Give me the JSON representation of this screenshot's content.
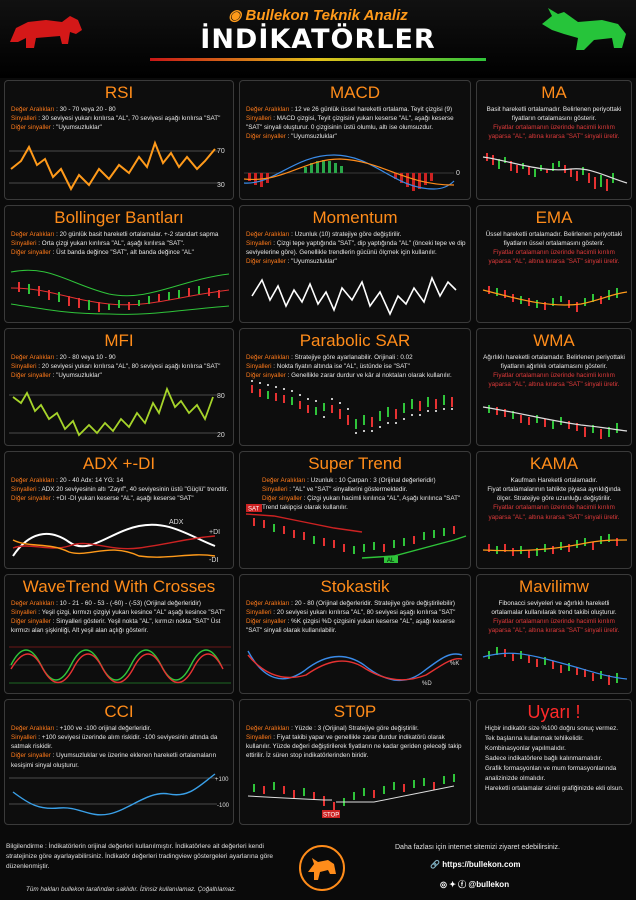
{
  "header": {
    "brand": "Bullekon Teknik Analiz",
    "title": "İNDİKATÖRLER"
  },
  "cards": {
    "rsi": {
      "title": "RSI",
      "l1k": "Değer Aralıkları",
      "l1": " : 30 - 70 veya 20 - 80",
      "l2k": "Sinyalleri",
      "l2": " : 30 seviyesi yukarı kırılırsa \"AL\", 70 seviyesi aşağı kırılırsa \"SAT\"",
      "l3k": "Diğer sinyaller",
      "l3": " : \"Uyumsuzluklar\"",
      "upper": "70",
      "lower": "30"
    },
    "macd": {
      "title": "MACD",
      "l1k": "Değer Aralıkları",
      "l1": " : 12 ve 26 günlük üssel hareketli ortalama. Teyit çizgisi (9)",
      "l2k": "Sinyalleri",
      "l2": " : MACD çizgisi, Teyit çizgisini yukarı keserse \"AL\", aşağı keserse \"SAT\" sinyali oluşturur. 0 çizgisinin üstü olumlu, altı ise olumsuzdur.",
      "l3k": "Diğer sinyaller",
      "l3": " : \"Uyumsuzluklar\"",
      "zero": "0"
    },
    "ma": {
      "title": "MA",
      "t1": "Basit hareketli ortalamadır. Belirlenen periyottaki fiyatların ortalamasını gösterir.",
      "t2": "Fiyatlar ortalamanın üzerinde hacimli kırılım yaparsa \"AL\", altına kırarsa \"SAT\" sinyali üretir."
    },
    "bollinger": {
      "title": "Bollinger Bantları",
      "l1k": "Değer Aralıkları",
      "l1": " : 20 günlük basit hareketli ortalamalar. +-2 standart sapma",
      "l2k": "Sinyalleri",
      "l2": " : Orta çizgi yukarı kırılırsa \"AL\", aşağı kırılırsa \"SAT\".",
      "l3k": "Diğer sinyaller",
      "l3": " : Üst banda değince \"SAT\", alt banda değince \"AL\""
    },
    "momentum": {
      "title": "Momentum",
      "l1k": "Değer Aralıkları",
      "l1": " : Uzunluk (10) stratejiye göre değiştirilir.",
      "l2k": "Sinyalleri",
      "l2": " : Çizgi tepe yaptığında \"SAT\", dip yaptığında \"AL\" (önceki tepe ve dip seviyelerine göre). Genellikle trendlerin gücünü ölçmek için kullanılır.",
      "l3k": "Diğer sinyaller",
      "l3": " : \"Uyumsuzluklar\""
    },
    "ema": {
      "title": "EMA",
      "t1": "Üssel hareketli ortalamadır. Belirlenen periyottaki fiyatların üssel ortalamasını gösterir.",
      "t2": "Fiyatlar ortalamanın üzerinde hacimli kırılım yaparsa \"AL\", altına kırarsa \"SAT\" sinyali üretir."
    },
    "mfi": {
      "title": "MFI",
      "l1k": "Değer Aralıkları",
      "l1": " : 20 - 80 veya 10 - 90",
      "l2k": "Sinyalleri",
      "l2": " : 20 seviyesi yukarı kırılırsa \"AL\", 80 seviyesi aşağı kırılırsa \"SAT\"",
      "l3k": "Diğer sinyaller",
      "l3": " : \"Uyumsuzluklar\"",
      "upper": "80",
      "lower": "20"
    },
    "psar": {
      "title": "Parabolic SAR",
      "l1k": "Değer Aralıkları",
      "l1": " : Stratejiye göre ayarlanabilir. Orijinali : 0.02",
      "l2k": "Sinyalleri",
      "l2": " : Nokta fiyatın altında ise \"AL\", üstünde ise \"SAT\"",
      "l3k": "Diğer sinyaller",
      "l3": " : Genellikle zarar durdur ve kâr al noktaları olarak kullanılır."
    },
    "wma": {
      "title": "WMA",
      "t1": "Ağırlıklı hareketli ortalamadır. Belirlenen periyottaki fiyatların ağırlıklı ortalamasını gösterir.",
      "t2": "Fiyatlar ortalamanın üzerinde hacimli kırılım yaparsa \"AL\", altına kırarsa \"SAT\" sinyali üretir."
    },
    "adx": {
      "title": "ADX +-DI",
      "l1k": "Değer Aralıkları",
      "l1": " : 20 - 40      Adx: 14 YG: 14",
      "l2k": "Sinyalleri",
      "l2": " : ADX 20 seviyesinin altı \"Zayıf\", 40 seviyesinin üstü \"Güçlü\" trendtir.",
      "l3k": "Diğer sinyaller",
      "l3": " : +DI -DI yukarı keserse \"AL\", aşağı keserse \"SAT\"",
      "lbl_adx": "ADX",
      "lbl_pdi": "+DI",
      "lbl_mdi": "-DI"
    },
    "supertrend": {
      "title": "Super Trend",
      "l1k": "Değer Aralıkları",
      "l1": " : Uzunluk : 10 Çarpan : 3 (Orijinal değerleridir)",
      "l2k": "Sinyalleri",
      "l2": " : \"AL\" ve \"SAT\" sinyallerini göstermektedir.",
      "l3k": "Diğer sinyaller",
      "l3": " : Çizgi yukarı hacimli kırılınca \"AL\", Aşağı kırılınca \"SAT\" Trend takipçisi olarak kullanılır.",
      "sat": "SAT",
      "al": "AL"
    },
    "kama": {
      "title": "KAMA",
      "t0": "Kaufman Hareketli ortalamadır.",
      "t1": "Fiyat ortalamalarının tahlikte piyasa ayrıklığında ölçer. Stratejiye göre uzunluğu değiştirilir.",
      "t2": "Fiyatlar ortalamanın üzerinde hacimli kırılım yaparsa \"AL\", altına kırarsa \"SAT\" sinyali üretir."
    },
    "wavetrend": {
      "title": "WaveTrend With Crosses",
      "l1k": "Değer Aralıkları",
      "l1": " : 10 - 21 - 60 - 53 - (-60) - (-53) (Orijinal değerleridir)",
      "l2k": "Sinyalleri",
      "l2": " : Yeşil çizgi, kırmızı çizgiyi yukarı kesince \"AL\" aşağı kesince \"SAT\"",
      "l3k": "Diğer sinyaller",
      "l3": " : Sinyalleri gösterir. Yeşil nokta \"AL\", kırmızı nokta \"SAT\" Üst kırmızı alan şişkinliği, Alt yeşil alan açlığı gösterir."
    },
    "stokastik": {
      "title": "Stokastik",
      "l1k": "Değer Aralıkları",
      "l1": " : 20 - 80 (Orijinal değerleridir. Stratejiye göre değiştirilebilir)",
      "l2k": "Sinyalleri",
      "l2": " : 20 seviyesi yukarı kırılırsa \"AL\", 80 seviyesi aşağı kırılırsa \"SAT\"",
      "l3k": "Diğer sinyaller",
      "l3": " : %K çizgisi %D çizgisini yukarı keserse \"AL\", aşağı keserse \"SAT\" sinyali olarak kullanılabilir.",
      "lk": "%K",
      "ld": "%D"
    },
    "mavilimw": {
      "title": "Mavilimw",
      "t1": "Fibonacci seviyeleri ve ağırlıklı hareketli ortalamalar kullanılarak trend takibi oluşturur.",
      "t2": "Fiyatlar ortalamanın üzerinde hacimli kırılım yaparsa \"AL\", altına kırarsa \"SAT\" sinyali üretir."
    },
    "cci": {
      "title": "CCI",
      "l1k": "Değer Aralıkları",
      "l1": " : +100 ve -100 orijinal değerleridir.",
      "l2k": "Sinyalleri",
      "l2": " : +100 seviyesi üzerinde alım riskidir. -100 seviyesinin altında da satmak riskidir.",
      "l3k": "Diğer sinyaller",
      "l3": " : Uyumsuzluklar ve üzerine eklenen hareketli ortalamaların kesişimi sinyal oluşturur.",
      "p100": "+100",
      "m100": "-100"
    },
    "stop": {
      "title": "ST0P",
      "l1k": "Değer Aralıkları",
      "l1": " : Yüzde : 3 (Orijinal) Stratejiye göre değiştirilir.",
      "l2k": "Sinyalleri",
      "l2": " : Fiyat takibi yapar ve genellikle zarar durdur indikatörü olarak kullanılır. Yüzde değeri değiştirilerek fiyatların ne kadar geriden geleceği takip ettirilir. İz süren stop indikatörlerinden biridir.",
      "stop_lbl": "STOP"
    },
    "uyari": {
      "title": "Uyarı !",
      "lines": [
        "Hiçbir indikatör size %100 doğru sonuç vermez.",
        "Tek başlarına kullanmak tehlikelidir.",
        "Kombinasyonlar yapılmalıdır.",
        "Sadece indikatörlere bağlı kalınmamalıdır.",
        "Grafik formasyonları ve mum formasyonlarında analizinizde olmalıdır.",
        "Hareketli ortalamalar süreli grafiğinizde ekli olsun."
      ]
    }
  },
  "footer": {
    "info": "Bilgilendirme : İndikatörlerin orijinal değerleri kullanılmıştır. İndikatörlere ait değerleri kendi stratejinize göre ayarlayabilirsiniz. İndikatör değerleri tradingview göstergeleri ayarlarına göre düzenlenmiştir.",
    "copy": "Tüm hakları bullekon tarafından saklıdır. İzinsiz kullanılamaz. Çoğaltılamaz.",
    "more": "Daha fazlası için internet sitemizi ziyaret edebilirsiniz.",
    "site": "https://bullekon.com",
    "handle": "@bullekon"
  },
  "colors": {
    "accent": "#ff8c1a",
    "warn": "#e03a3a",
    "up": "#2fc43a",
    "down": "#e63232"
  }
}
